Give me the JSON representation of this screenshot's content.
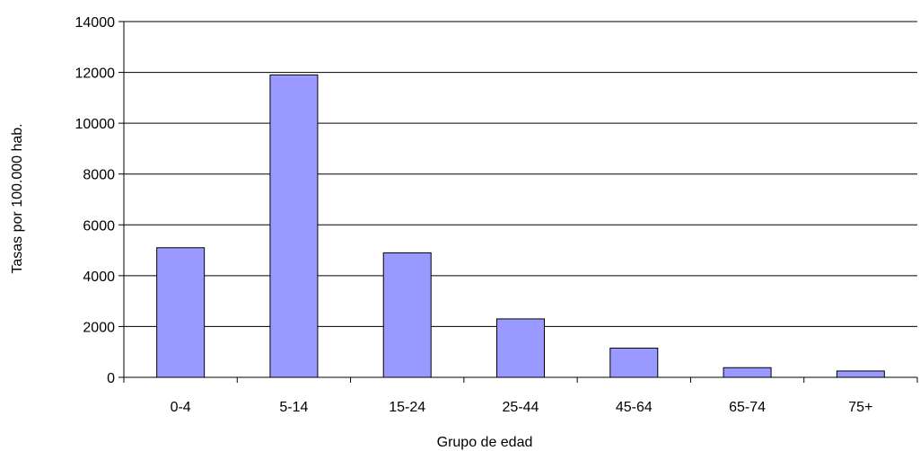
{
  "chart_data": {
    "type": "bar",
    "title": "",
    "xlabel": "Grupo de edad",
    "ylabel": "Tasas por 100.000 hab.",
    "categories": [
      "0-4",
      "5-14",
      "15-24",
      "25-44",
      "45-64",
      "65-74",
      "75+"
    ],
    "values": [
      5100,
      11900,
      4900,
      2300,
      1150,
      380,
      250
    ],
    "ylim": [
      0,
      14000
    ],
    "yticks": [
      "0",
      "2000",
      "4000",
      "6000",
      "8000",
      "10000",
      "12000",
      "14000"
    ],
    "grid": true,
    "legend": "none",
    "bar_color": "#9999ff",
    "bar_edge_color": "#000000"
  }
}
